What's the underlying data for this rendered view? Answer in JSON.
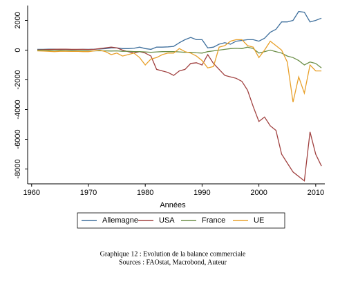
{
  "chart_data": {
    "type": "line",
    "x_label": "Années",
    "x": [
      1961,
      1962,
      1963,
      1964,
      1965,
      1966,
      1967,
      1968,
      1969,
      1970,
      1971,
      1972,
      1973,
      1974,
      1975,
      1976,
      1977,
      1978,
      1979,
      1980,
      1981,
      1982,
      1983,
      1984,
      1985,
      1986,
      1987,
      1988,
      1989,
      1990,
      1991,
      1992,
      1993,
      1994,
      1995,
      1996,
      1997,
      1998,
      1999,
      2000,
      2001,
      2002,
      2003,
      2004,
      2005,
      2006,
      2007,
      2008,
      2009,
      2010,
      2011
    ],
    "series": [
      {
        "name": "Allemagne",
        "color": "#3e6f9c",
        "values": [
          50,
          50,
          60,
          60,
          50,
          50,
          40,
          40,
          50,
          50,
          60,
          80,
          100,
          150,
          150,
          100,
          100,
          120,
          200,
          100,
          50,
          200,
          200,
          220,
          250,
          500,
          700,
          850,
          700,
          700,
          150,
          200,
          400,
          500,
          400,
          600,
          650,
          700,
          700,
          600,
          800,
          1200,
          1400,
          1900,
          1900,
          2000,
          2600,
          2550,
          1900,
          2000,
          2150
        ]
      },
      {
        "name": "USA",
        "color": "#a0403f",
        "values": [
          20,
          30,
          40,
          50,
          60,
          60,
          50,
          50,
          50,
          40,
          50,
          100,
          150,
          200,
          150,
          0,
          -100,
          -200,
          -100,
          -200,
          -400,
          -1300,
          -1400,
          -1500,
          -1700,
          -1400,
          -1300,
          -900,
          -850,
          -1000,
          -300,
          -900,
          -1300,
          -1700,
          -1800,
          -1900,
          -2100,
          -2700,
          -3800,
          -4800,
          -4500,
          -5100,
          -5400,
          -7000,
          -7600,
          -8200,
          -8500,
          -8800,
          -5500,
          -7000,
          -7800
        ]
      },
      {
        "name": "France",
        "color": "#6b8e47",
        "values": [
          0,
          0,
          -10,
          -20,
          -20,
          -30,
          -30,
          -40,
          -40,
          -50,
          -50,
          -40,
          -50,
          -60,
          -50,
          -80,
          -80,
          -100,
          -100,
          -120,
          -150,
          -120,
          -100,
          -100,
          -100,
          -120,
          -150,
          -150,
          -180,
          -200,
          -100,
          -50,
          0,
          50,
          100,
          120,
          100,
          200,
          100,
          -200,
          -100,
          0,
          -100,
          -200,
          -400,
          -500,
          -700,
          -1000,
          -800,
          -900,
          -1200
        ]
      },
      {
        "name": "UE",
        "color": "#e8a02a",
        "values": [
          -50,
          -60,
          -80,
          -100,
          -80,
          -80,
          -90,
          -80,
          -100,
          -100,
          -50,
          0,
          -100,
          -300,
          -200,
          -400,
          -300,
          -200,
          -500,
          -1000,
          -600,
          -500,
          -300,
          -200,
          -200,
          100,
          -100,
          -200,
          -400,
          -700,
          -1200,
          -1100,
          200,
          300,
          600,
          700,
          700,
          300,
          200,
          -500,
          0,
          600,
          300,
          0,
          -800,
          -3500,
          -1800,
          -2900,
          -1000,
          -1400,
          -1400
        ]
      }
    ],
    "xlim": [
      1959.3,
      2011.6
    ],
    "xticks": [
      1960,
      1970,
      1980,
      1990,
      2000,
      2010
    ],
    "ylim": [
      -9000,
      3000
    ],
    "yticks": [
      -8000,
      -6000,
      -4000,
      -2000,
      0,
      2000
    ],
    "legend": "bottom",
    "caption": [
      "Graphique 12 : Evolution de la balance commerciale",
      "Sources : FAOstat, Macrobond, Auteur"
    ]
  }
}
